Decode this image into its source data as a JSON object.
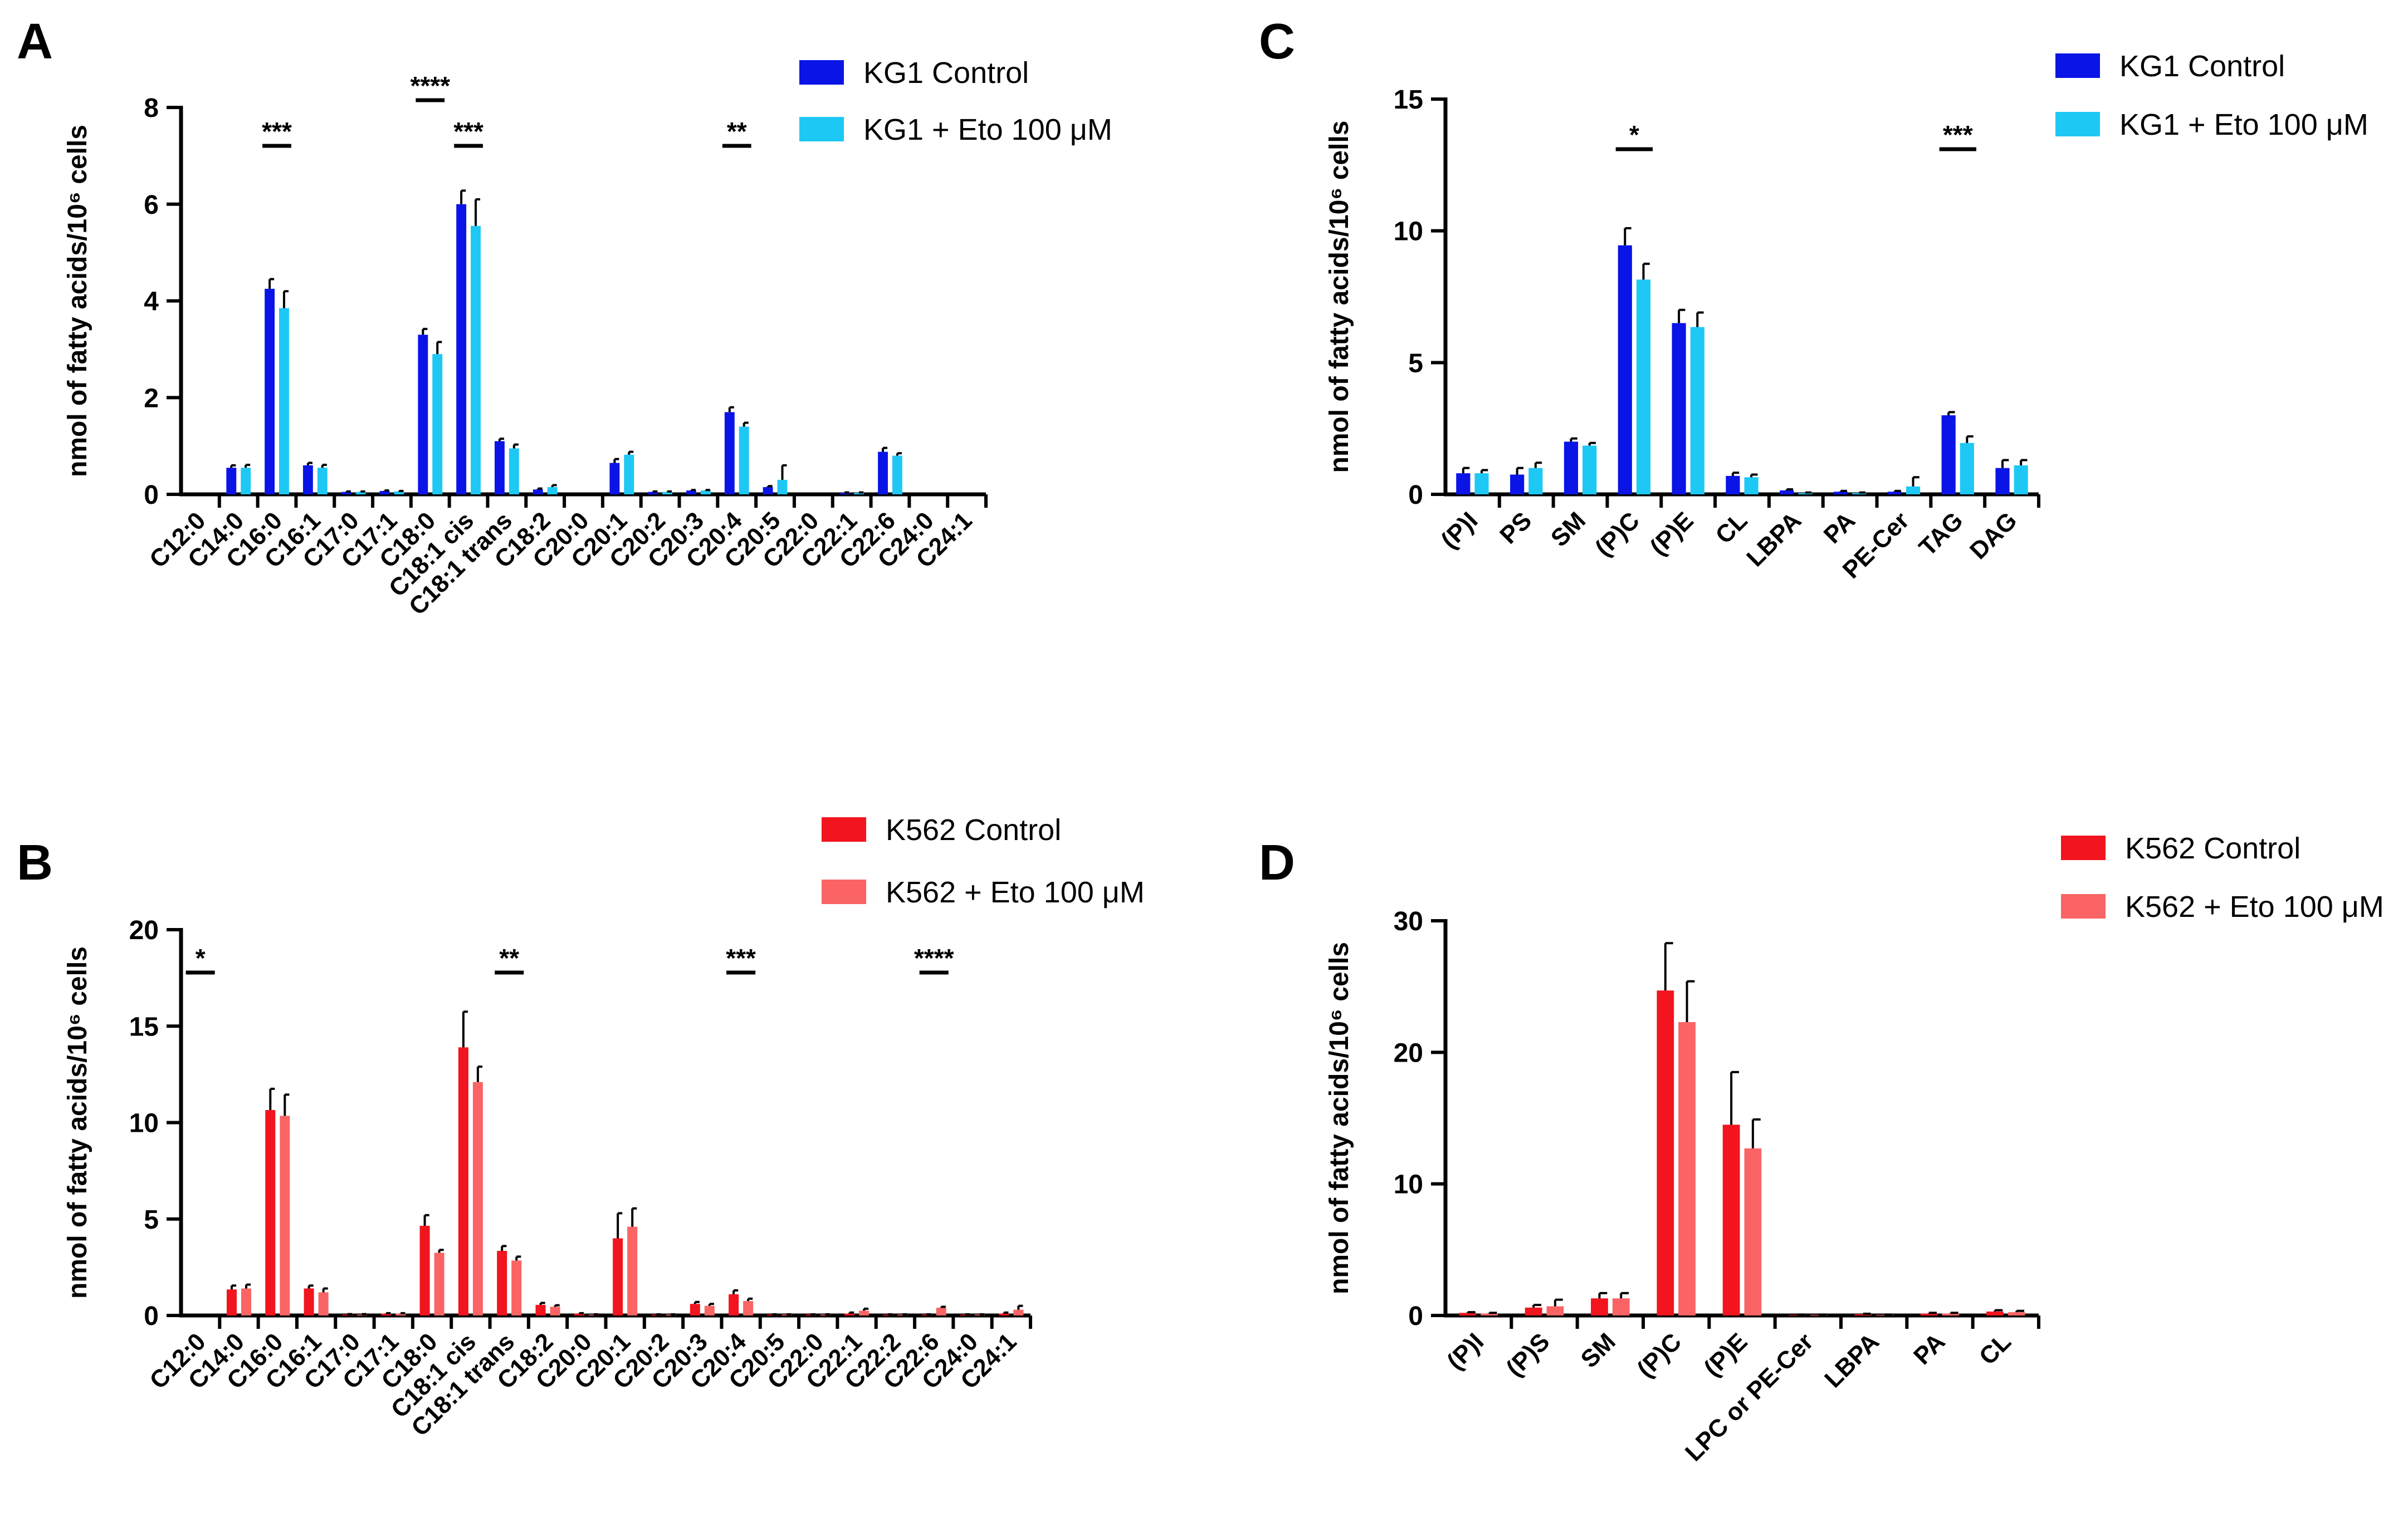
{
  "colors": {
    "kg1_control": "#0a14e6",
    "kg1_eto": "#1ec8f5",
    "k562_control": "#f2141e",
    "k562_eto": "#fa6464"
  },
  "chart_data": [
    {
      "panel": "A",
      "type": "bar",
      "ylabel": "nmol of fatty acids/10⁶ cells",
      "ylim": [
        0,
        8
      ],
      "yticks": [
        "0",
        "2",
        "4",
        "6",
        "8"
      ],
      "categories": [
        "C12:0",
        "C14:0",
        "C16:0",
        "C16:1",
        "C17:0",
        "C17:1",
        "C18:0",
        "C18:1 cis",
        "C18:1 trans",
        "C18:2",
        "C20:0",
        "C20:1",
        "C20:2",
        "C20:3",
        "C20:4",
        "C20:5",
        "C22:0",
        "C22:1",
        "C22:6",
        "C24:0",
        "C24:1"
      ],
      "series": [
        {
          "name": "KG1 Control",
          "color_key": "kg1_control",
          "values": [
            0,
            0.55,
            4.25,
            0.6,
            0.05,
            0.07,
            3.3,
            6.0,
            1.1,
            0.1,
            0,
            0.65,
            0.05,
            0.08,
            1.7,
            0.15,
            0,
            0.03,
            0.88,
            0,
            0
          ],
          "errors": [
            0,
            0.05,
            0.2,
            0.05,
            0.01,
            0.01,
            0.12,
            0.28,
            0.05,
            0.02,
            0,
            0.08,
            0.01,
            0.01,
            0.1,
            0.02,
            0,
            0.01,
            0.08,
            0,
            0
          ]
        },
        {
          "name": "KG1 + Eto 100 μM",
          "color_key": "kg1_eto",
          "values": [
            0,
            0.55,
            3.85,
            0.55,
            0.05,
            0.06,
            2.9,
            5.55,
            0.95,
            0.15,
            0,
            0.82,
            0.05,
            0.08,
            1.4,
            0.3,
            0,
            0.03,
            0.8,
            0,
            0
          ],
          "errors": [
            0,
            0.06,
            0.35,
            0.06,
            0.01,
            0.01,
            0.25,
            0.55,
            0.08,
            0.04,
            0,
            0.06,
            0.01,
            0.01,
            0.08,
            0.3,
            0,
            0.01,
            0.05,
            0,
            0
          ]
        }
      ],
      "significance": [
        {
          "category": "C16:0",
          "label": "***"
        },
        {
          "category": "C18:0",
          "label": "****"
        },
        {
          "category": "C18:1 cis",
          "label": "***"
        },
        {
          "category": "C20:4",
          "label": "**"
        }
      ]
    },
    {
      "panel": "B",
      "type": "bar",
      "ylabel": "nmol of fatty acids/10⁶ cells",
      "ylim": [
        0,
        20
      ],
      "yticks": [
        "0",
        "5",
        "10",
        "15",
        "20"
      ],
      "categories": [
        "C12:0",
        "C14:0",
        "C16:0",
        "C16:1",
        "C17:0",
        "C17:1",
        "C18:0",
        "C18:1 cis",
        "C18:1 trans",
        "C18:2",
        "C20:0",
        "C20:1",
        "C20:2",
        "C20:3",
        "C20:4",
        "C20:5",
        "C22:0",
        "C22:1",
        "C22:2",
        "C22:6",
        "C24:0",
        "C24:1"
      ],
      "series": [
        {
          "name": "K562 Control",
          "color_key": "k562_control",
          "values": [
            0,
            1.35,
            10.65,
            1.4,
            0.05,
            0.1,
            4.65,
            13.9,
            3.35,
            0.55,
            0.1,
            4.0,
            0.05,
            0.6,
            1.1,
            0.05,
            0.05,
            0.1,
            0.05,
            0.05,
            0.05,
            0.1
          ],
          "errors": [
            0,
            0.2,
            1.1,
            0.15,
            0.02,
            0.02,
            0.55,
            1.85,
            0.25,
            0.1,
            0.02,
            1.3,
            0.01,
            0.1,
            0.2,
            0.01,
            0.01,
            0.05,
            0.01,
            0.01,
            0.01,
            0.05
          ],
          "sig": [
            true,
            false,
            false,
            false,
            false,
            false,
            false,
            false,
            true,
            false,
            false,
            false,
            false,
            false,
            true,
            false,
            false,
            false,
            false,
            true,
            false,
            false
          ]
        },
        {
          "name": "K562 + Eto 100 μM",
          "color_key": "k562_eto",
          "values": [
            0,
            1.4,
            10.35,
            1.2,
            0.05,
            0.1,
            3.25,
            12.1,
            2.85,
            0.45,
            0.05,
            4.6,
            0.05,
            0.5,
            0.75,
            0.05,
            0.05,
            0.25,
            0.05,
            0.4,
            0.05,
            0.3
          ],
          "errors": [
            0,
            0.2,
            1.1,
            0.2,
            0.02,
            0.02,
            0.15,
            0.8,
            0.2,
            0.08,
            0.01,
            0.95,
            0.01,
            0.1,
            0.12,
            0.01,
            0.01,
            0.1,
            0.01,
            0.05,
            0.01,
            0.2
          ]
        }
      ],
      "significance": [
        {
          "category": "C12:0",
          "label": "*"
        },
        {
          "category": "C18:1 trans",
          "label": "**"
        },
        {
          "category": "C20:4",
          "label": "***"
        },
        {
          "category": "C22:6",
          "label": "****"
        }
      ]
    },
    {
      "panel": "C",
      "type": "bar",
      "ylabel": "nmol of fatty acids/10⁶ cells",
      "ylim": [
        0,
        15
      ],
      "yticks": [
        "0",
        "5",
        "10",
        "15"
      ],
      "categories": [
        "(P)I",
        "PS",
        "SM",
        "(P)C",
        "(P)E",
        "CL",
        "LBPA",
        "PA",
        "PE-Cer",
        "TAG",
        "DAG"
      ],
      "series": [
        {
          "name": "KG1 Control",
          "color_key": "kg1_control",
          "values": [
            0.8,
            0.75,
            2.0,
            9.45,
            6.5,
            0.7,
            0.15,
            0.1,
            0.1,
            3.0,
            1.0
          ],
          "errors": [
            0.2,
            0.25,
            0.12,
            0.65,
            0.5,
            0.12,
            0.04,
            0.03,
            0.03,
            0.12,
            0.3
          ]
        },
        {
          "name": "KG1 + Eto 100 μM",
          "color_key": "kg1_eto",
          "values": [
            0.8,
            1.0,
            1.85,
            8.15,
            6.35,
            0.65,
            0.05,
            0.05,
            0.3,
            1.95,
            1.1
          ],
          "errors": [
            0.12,
            0.2,
            0.1,
            0.6,
            0.55,
            0.1,
            0.02,
            0.02,
            0.35,
            0.25,
            0.2
          ]
        }
      ],
      "significance": [
        {
          "category": "(P)C",
          "label": "*"
        },
        {
          "category": "TAG",
          "label": "***"
        }
      ]
    },
    {
      "panel": "D",
      "type": "bar",
      "ylabel": "nmol of fatty acids/10⁶ cells",
      "ylim": [
        0,
        30
      ],
      "yticks": [
        "0",
        "10",
        "20",
        "30"
      ],
      "categories": [
        "(P)I",
        "(P)S",
        "SM",
        "(P)C",
        "(P)E",
        "LPC or PE-Cer",
        "LBPA",
        "PA",
        "CL"
      ],
      "series": [
        {
          "name": "K562 Control",
          "color_key": "k562_control",
          "values": [
            0.2,
            0.6,
            1.3,
            24.7,
            14.5,
            0.05,
            0.1,
            0.15,
            0.3
          ],
          "errors": [
            0.05,
            0.2,
            0.4,
            3.6,
            4.0,
            0.02,
            0.03,
            0.05,
            0.1
          ]
        },
        {
          "name": "K562 + Eto 100 μM",
          "color_key": "k562_eto",
          "values": [
            0.15,
            0.7,
            1.3,
            22.3,
            12.7,
            0.05,
            0.05,
            0.15,
            0.25
          ],
          "errors": [
            0.05,
            0.5,
            0.4,
            3.1,
            2.2,
            0.02,
            0.02,
            0.05,
            0.1
          ]
        }
      ],
      "significance": []
    }
  ]
}
